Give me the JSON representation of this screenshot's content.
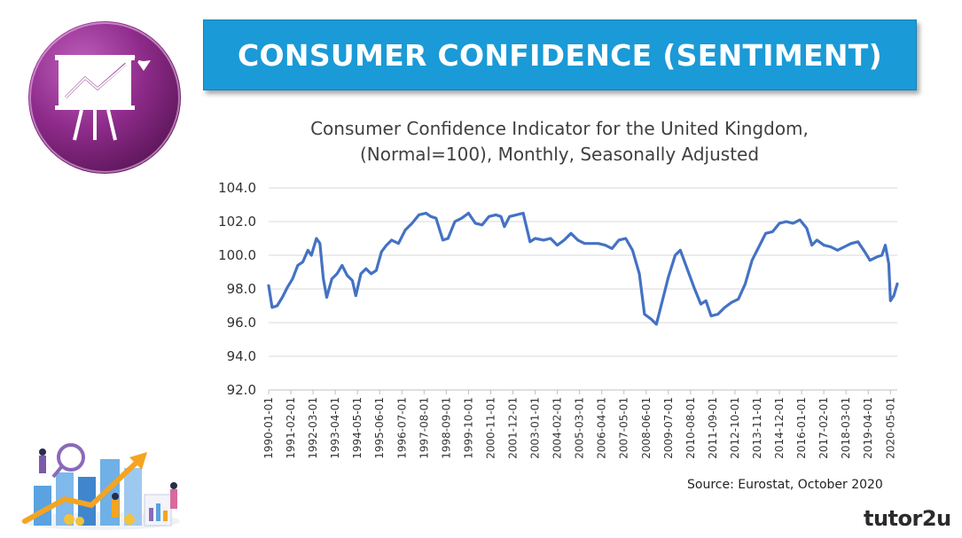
{
  "banner": {
    "title": "CONSUMER CONFIDENCE (SENTIMENT)"
  },
  "brand": {
    "name": "tutor2u"
  },
  "source": "Source: Eurostat, October 2020",
  "colors": {
    "banner": "#1a9ad6",
    "series": "#4472c4",
    "logo": "#8e2b8a",
    "grid": "#d9d9d9"
  },
  "icons": [
    "presentation-chart-icon",
    "business-growth-illustration"
  ],
  "chart_data": {
    "type": "line",
    "title_lines": [
      "Consumer Confidence Indicator for the United Kingdom,",
      "(Normal=100), Monthly, Seasonally Adjusted"
    ],
    "xlabel": "",
    "ylabel": "",
    "ylim": [
      92,
      104
    ],
    "y_ticks": [
      "92.0",
      "94.0",
      "96.0",
      "98.0",
      "100.0",
      "102.0",
      "104.0"
    ],
    "grid": "horizontal",
    "legend": "none",
    "x_ticks": [
      "1990-01-01",
      "1991-02-01",
      "1992-03-01",
      "1993-04-01",
      "1994-05-01",
      "1995-06-01",
      "1996-07-01",
      "1997-08-01",
      "1998-09-01",
      "1999-10-01",
      "2000-11-01",
      "2001-12-01",
      "2003-01-01",
      "2004-02-01",
      "2005-03-01",
      "2006-04-01",
      "2007-05-01",
      "2008-06-01",
      "2009-07-01",
      "2010-08-01",
      "2011-09-01",
      "2012-10-01",
      "2013-11-01",
      "2014-12-01",
      "2016-01-01",
      "2017-02-01",
      "2018-03-01",
      "2019-04-01",
      "2020-05-01"
    ],
    "x_start": "1990-01",
    "x_end": "2020-09",
    "series": [
      {
        "points": [
          [
            "1990-01",
            98.2
          ],
          [
            "1990-03",
            96.9
          ],
          [
            "1990-06",
            97.0
          ],
          [
            "1990-09",
            97.5
          ],
          [
            "1990-12",
            98.1
          ],
          [
            "1991-03",
            98.6
          ],
          [
            "1991-06",
            99.4
          ],
          [
            "1991-09",
            99.6
          ],
          [
            "1991-12",
            100.3
          ],
          [
            "1992-02",
            100.0
          ],
          [
            "1992-05",
            101.0
          ],
          [
            "1992-07",
            100.7
          ],
          [
            "1992-09",
            98.6
          ],
          [
            "1992-11",
            97.5
          ],
          [
            "1993-02",
            98.6
          ],
          [
            "1993-05",
            98.9
          ],
          [
            "1993-08",
            99.4
          ],
          [
            "1993-11",
            98.8
          ],
          [
            "1994-02",
            98.5
          ],
          [
            "1994-04",
            97.6
          ],
          [
            "1994-07",
            98.9
          ],
          [
            "1994-10",
            99.2
          ],
          [
            "1995-01",
            98.9
          ],
          [
            "1995-04",
            99.1
          ],
          [
            "1995-07",
            100.2
          ],
          [
            "1995-10",
            100.6
          ],
          [
            "1996-01",
            100.9
          ],
          [
            "1996-05",
            100.7
          ],
          [
            "1996-09",
            101.5
          ],
          [
            "1997-01",
            101.9
          ],
          [
            "1997-05",
            102.4
          ],
          [
            "1997-09",
            102.5
          ],
          [
            "1997-12",
            102.3
          ],
          [
            "1998-03",
            102.2
          ],
          [
            "1998-07",
            100.9
          ],
          [
            "1998-10",
            101.0
          ],
          [
            "1999-02",
            102.0
          ],
          [
            "1999-06",
            102.2
          ],
          [
            "1999-10",
            102.5
          ],
          [
            "2000-02",
            101.9
          ],
          [
            "2000-06",
            101.8
          ],
          [
            "2000-10",
            102.3
          ],
          [
            "2001-02",
            102.4
          ],
          [
            "2001-05",
            102.3
          ],
          [
            "2001-07",
            101.7
          ],
          [
            "2001-10",
            102.3
          ],
          [
            "2002-02",
            102.4
          ],
          [
            "2002-06",
            102.5
          ],
          [
            "2002-10",
            100.8
          ],
          [
            "2003-01",
            101.0
          ],
          [
            "2003-06",
            100.9
          ],
          [
            "2003-10",
            101.0
          ],
          [
            "2004-02",
            100.6
          ],
          [
            "2004-06",
            100.9
          ],
          [
            "2004-10",
            101.3
          ],
          [
            "2005-02",
            100.9
          ],
          [
            "2005-06",
            100.7
          ],
          [
            "2005-10",
            100.7
          ],
          [
            "2006-02",
            100.7
          ],
          [
            "2006-06",
            100.6
          ],
          [
            "2006-10",
            100.4
          ],
          [
            "2007-02",
            100.9
          ],
          [
            "2007-06",
            101.0
          ],
          [
            "2007-10",
            100.3
          ],
          [
            "2008-02",
            98.9
          ],
          [
            "2008-05",
            96.5
          ],
          [
            "2008-09",
            96.2
          ],
          [
            "2008-12",
            95.9
          ],
          [
            "2009-03",
            97.1
          ],
          [
            "2009-07",
            98.7
          ],
          [
            "2009-11",
            100.0
          ],
          [
            "2010-02",
            100.3
          ],
          [
            "2010-06",
            99.2
          ],
          [
            "2010-10",
            98.1
          ],
          [
            "2011-02",
            97.1
          ],
          [
            "2011-05",
            97.3
          ],
          [
            "2011-08",
            96.4
          ],
          [
            "2011-12",
            96.5
          ],
          [
            "2012-04",
            96.9
          ],
          [
            "2012-08",
            97.2
          ],
          [
            "2012-12",
            97.4
          ],
          [
            "2013-04",
            98.3
          ],
          [
            "2013-08",
            99.7
          ],
          [
            "2013-12",
            100.5
          ],
          [
            "2014-04",
            101.3
          ],
          [
            "2014-08",
            101.4
          ],
          [
            "2014-12",
            101.9
          ],
          [
            "2015-04",
            102.0
          ],
          [
            "2015-08",
            101.9
          ],
          [
            "2015-12",
            102.1
          ],
          [
            "2016-04",
            101.6
          ],
          [
            "2016-07",
            100.6
          ],
          [
            "2016-10",
            100.9
          ],
          [
            "2017-02",
            100.6
          ],
          [
            "2017-06",
            100.5
          ],
          [
            "2017-10",
            100.3
          ],
          [
            "2018-02",
            100.5
          ],
          [
            "2018-06",
            100.7
          ],
          [
            "2018-10",
            100.8
          ],
          [
            "2019-02",
            100.2
          ],
          [
            "2019-05",
            99.7
          ],
          [
            "2019-09",
            99.9
          ],
          [
            "2019-12",
            100.0
          ],
          [
            "2020-02",
            100.6
          ],
          [
            "2020-04",
            99.5
          ],
          [
            "2020-05",
            97.3
          ],
          [
            "2020-07",
            97.6
          ],
          [
            "2020-09",
            98.3
          ]
        ]
      }
    ]
  }
}
